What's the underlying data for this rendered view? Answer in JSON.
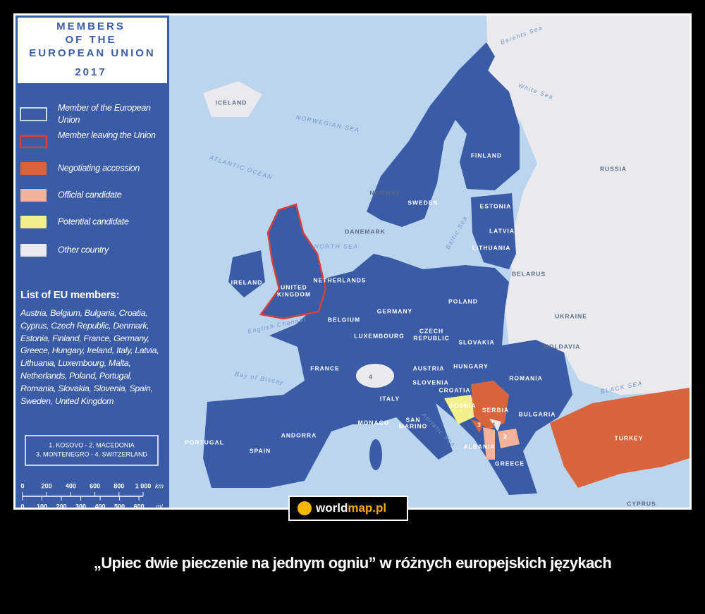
{
  "title": {
    "lines": [
      "MEMBERS",
      "OF THE",
      "EUROPEAN UNION"
    ],
    "year": "2017"
  },
  "legend": [
    {
      "label": "Member of the European Union",
      "color": "#3a5ba6"
    },
    {
      "label": "Member leaving the Union",
      "color": "#d8413b"
    },
    {
      "label": "Negotiating accession",
      "color": "#d8643d"
    },
    {
      "label": "Official candidate",
      "color": "#f1b39a"
    },
    {
      "label": "Potential candidate",
      "color": "#f3ef8c"
    },
    {
      "label": "Other country",
      "color": "#e9e9ee"
    }
  ],
  "members_heading": "List of EU members:",
  "members": "Austria, Belgium, Bulgaria, Croatia, Cyprus, Czech Republic, Denmark, Estonia, Finland, France, Germany, Greece, Hungary, Ireland, Italy, Latvia, Lithuania, Luxembourg, Malta, Netherlands, Poland, Portugal, Romania, Slovakia, Slovenia, Spain, Sweden, United Kingdom",
  "key": [
    "1. KOSOVO - 2. MACEDONIA",
    "3. MONTENEGRO - 4. SWITZERLAND"
  ],
  "scale": {
    "km": [
      0,
      200,
      400,
      600,
      800,
      {
        "value": 1000,
        "label": "1 000"
      }
    ],
    "km_unit": "km",
    "mi": [
      0,
      100,
      200,
      300,
      400,
      500,
      600
    ],
    "mi_unit": "mi"
  },
  "map_labels": [
    "ICELAND",
    "NORWEGIAN SEA",
    "ATLANTIC OCEAN",
    "NORWAY",
    "SWEDEN",
    "FINLAND",
    "RUSSIA",
    "ESTONIA",
    "LATVIA",
    "LITHUANIA",
    "DANEMARK",
    "NORTH SEA",
    "IRELAND",
    "UNITED",
    "KINGDOM",
    "NETHERLANDS",
    "BELARUS",
    "GERMANY",
    "POLAND",
    "BELGIUM",
    "LUXEMBOURG",
    "CZECH",
    "REPUBLIC",
    "UKRAINE",
    "SLOVAKIA",
    "MOLDAVIA",
    "FRANCE",
    "AUSTRIA",
    "HUNGARY",
    "ROMANIA",
    "SLOVENIA",
    "CROATIA",
    "BOSNIA",
    "SERBIA",
    "BULGARIA",
    "BLACK SEA",
    "ITALY",
    "MONACO",
    "SAN",
    "MARINO",
    "ANDORRA",
    "PORTUGAL",
    "SPAIN",
    "ALBANIA",
    "GREECE",
    "TURKEY",
    "CYPRUS",
    "1",
    "2",
    "3",
    "4",
    "Bay of Biscay",
    "English Channel",
    "Baltic Sea",
    "Barents Sea",
    "White Sea",
    "Adriatic Sea"
  ],
  "logo": {
    "word": "world",
    "accent": "map.pl"
  },
  "caption": "„Upiec dwie pieczenie na jednym ogniu” w różnych europejskich językach"
}
